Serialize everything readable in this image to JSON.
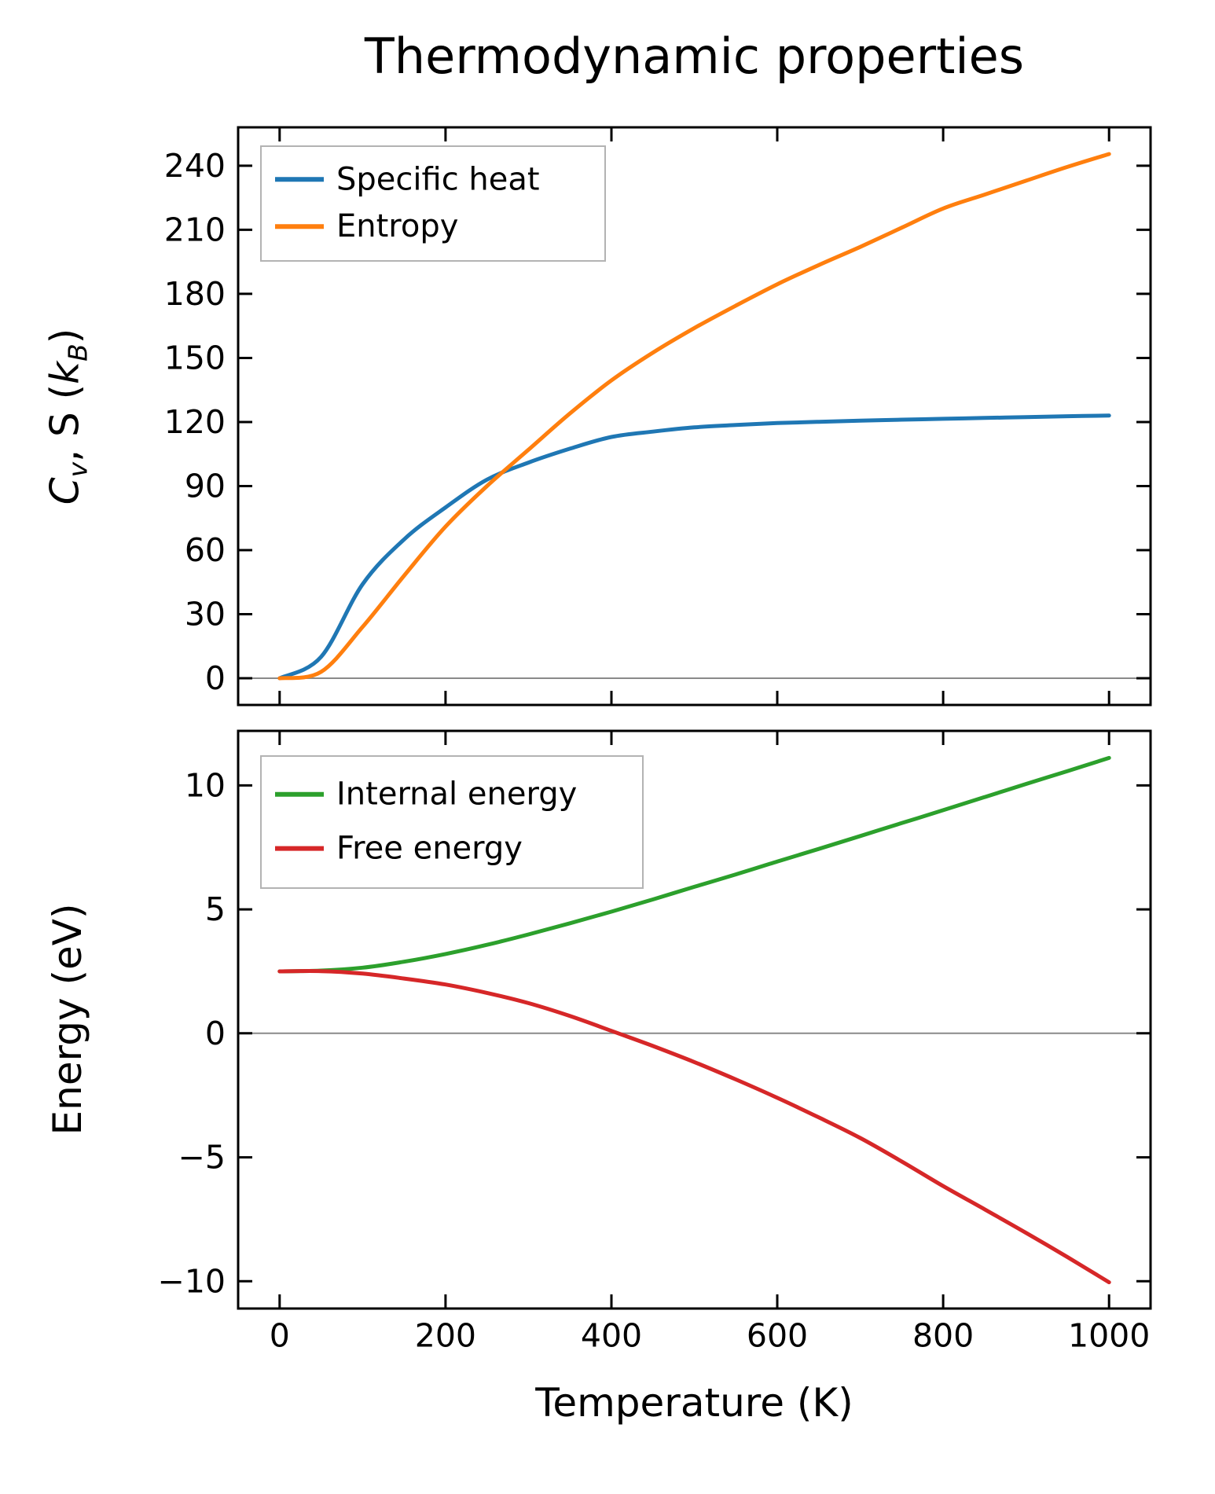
{
  "title": "Thermodynamic properties",
  "xlabel": "Temperature (K)",
  "colors": {
    "specific_heat": "#1f77b4",
    "entropy": "#ff7f0e",
    "internal_energy": "#2ca02c",
    "free_energy": "#d62728",
    "zero_line": "#8a8a8a",
    "axis": "#000000",
    "legend_border": "#b3b3b3",
    "background": "#ffffff"
  },
  "chart_data": [
    {
      "type": "line",
      "panel": "top",
      "title": "",
      "ylabel_runs": [
        {
          "t": "C",
          "s": "i"
        },
        {
          "t": "v",
          "s": "isub"
        },
        {
          "t": ", S (",
          "s": "n"
        },
        {
          "t": "k",
          "s": "i"
        },
        {
          "t": "B",
          "s": "isub"
        },
        {
          "t": ")",
          "s": "n"
        }
      ],
      "ylabel_text": "Cv, S (kB)",
      "x": [
        0,
        50,
        100,
        150,
        200,
        250,
        300,
        350,
        400,
        450,
        500,
        550,
        600,
        650,
        700,
        750,
        800,
        850,
        900,
        950,
        1000
      ],
      "series": [
        {
          "name": "Specific heat",
          "color": "specific_heat",
          "values": [
            0,
            10,
            44,
            65,
            80,
            93,
            101,
            107.5,
            113,
            115.5,
            117.5,
            118.6,
            119.5,
            120.1,
            120.6,
            121.1,
            121.5,
            121.9,
            122.3,
            122.7,
            123
          ]
        },
        {
          "name": "Entropy",
          "color": "entropy",
          "values": [
            0,
            3,
            24,
            48,
            71,
            90,
            107,
            124,
            139.5,
            152.5,
            164,
            174.5,
            184.5,
            193.5,
            202,
            211,
            220,
            226.5,
            233,
            239.5,
            245.5
          ]
        }
      ],
      "xlim": [
        -50,
        1050
      ],
      "ylim": [
        -12.5,
        258
      ],
      "xticks": [
        0,
        200,
        400,
        600,
        800,
        1000
      ],
      "yticks": [
        0,
        30,
        60,
        90,
        120,
        150,
        180,
        210,
        240
      ],
      "show_x_tick_labels": false,
      "zero_line": true,
      "grid": false,
      "legend": {
        "position": "upper left",
        "items": [
          "Specific heat",
          "Entropy"
        ]
      }
    },
    {
      "type": "line",
      "panel": "bottom",
      "title": "",
      "ylabel_runs": [
        {
          "t": "Energy (eV)",
          "s": "n"
        }
      ],
      "ylabel_text": "Energy (eV)",
      "x": [
        0,
        50,
        100,
        150,
        200,
        250,
        300,
        350,
        400,
        450,
        500,
        550,
        600,
        650,
        700,
        750,
        800,
        850,
        900,
        950,
        1000
      ],
      "series": [
        {
          "name": "Internal energy",
          "color": "internal_energy",
          "values": [
            2.5,
            2.53,
            2.65,
            2.89,
            3.2,
            3.57,
            3.99,
            4.44,
            4.91,
            5.4,
            5.91,
            6.41,
            6.93,
            7.44,
            7.96,
            8.48,
            9.0,
            9.53,
            10.06,
            10.58,
            11.11
          ]
        },
        {
          "name": "Free energy",
          "color": "free_energy",
          "values": [
            2.5,
            2.51,
            2.41,
            2.21,
            1.97,
            1.63,
            1.22,
            0.7,
            0.1,
            -0.51,
            -1.16,
            -1.86,
            -2.6,
            -3.39,
            -4.22,
            -5.17,
            -6.16,
            -7.1,
            -8.05,
            -9.03,
            -10.04
          ]
        }
      ],
      "xlim": [
        -50,
        1050
      ],
      "ylim": [
        -11.1,
        12.2
      ],
      "xticks": [
        0,
        200,
        400,
        600,
        800,
        1000
      ],
      "yticks": [
        -10,
        -5,
        0,
        5,
        10
      ],
      "show_x_tick_labels": true,
      "zero_line": true,
      "grid": false,
      "legend": {
        "position": "upper left",
        "items": [
          "Internal energy",
          "Free energy"
        ]
      }
    }
  ]
}
